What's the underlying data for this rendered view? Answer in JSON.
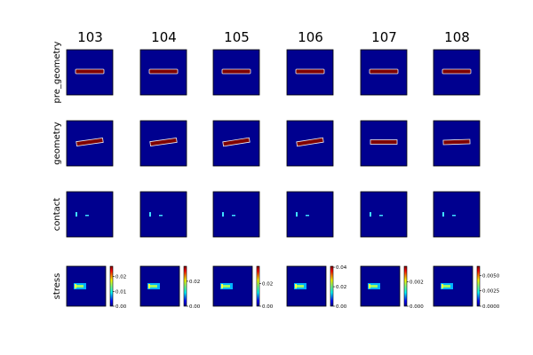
{
  "chart_data": {
    "type": "heatmap",
    "colormap": "jet",
    "columns": [
      "103",
      "104",
      "105",
      "106",
      "107",
      "108"
    ],
    "rows": [
      "pre_geometry",
      "geometry",
      "contact",
      "stress"
    ],
    "panel_background_color": "#00008f",
    "bar_fill_color": "#800000",
    "bar_outline_color": "#f0f0f0",
    "contact_marker_color": "#40e0ff",
    "stress_colorbars": [
      {
        "column": "103",
        "ticks": [
          "0.00",
          "0.01",
          "0.02"
        ],
        "tick_values": [
          0,
          0.01,
          0.02
        ],
        "vmin": 0,
        "vmax": 0.027
      },
      {
        "column": "104",
        "ticks": [
          "0.00",
          "0.02"
        ],
        "tick_values": [
          0,
          0.02
        ],
        "vmin": 0,
        "vmax": 0.032
      },
      {
        "column": "105",
        "ticks": [
          "0.00",
          "0.02"
        ],
        "tick_values": [
          0,
          0.02
        ],
        "vmin": 0,
        "vmax": 0.035
      },
      {
        "column": "106",
        "ticks": [
          "0.00",
          "0.02",
          "0.04"
        ],
        "tick_values": [
          0,
          0.02,
          0.04
        ],
        "vmin": 0,
        "vmax": 0.041
      },
      {
        "column": "107",
        "ticks": [
          "0.000",
          "0.002"
        ],
        "tick_values": [
          0,
          0.002
        ],
        "vmin": 0,
        "vmax": 0.0033
      },
      {
        "column": "108",
        "ticks": [
          "0.0000",
          "0.0025",
          "0.0050"
        ],
        "tick_values": [
          0,
          0.0025,
          0.005
        ],
        "vmin": 0,
        "vmax": 0.0065
      }
    ],
    "geometry_bar_tilt_deg": [
      -8,
      -8,
      -9,
      -9,
      0,
      -2
    ]
  }
}
